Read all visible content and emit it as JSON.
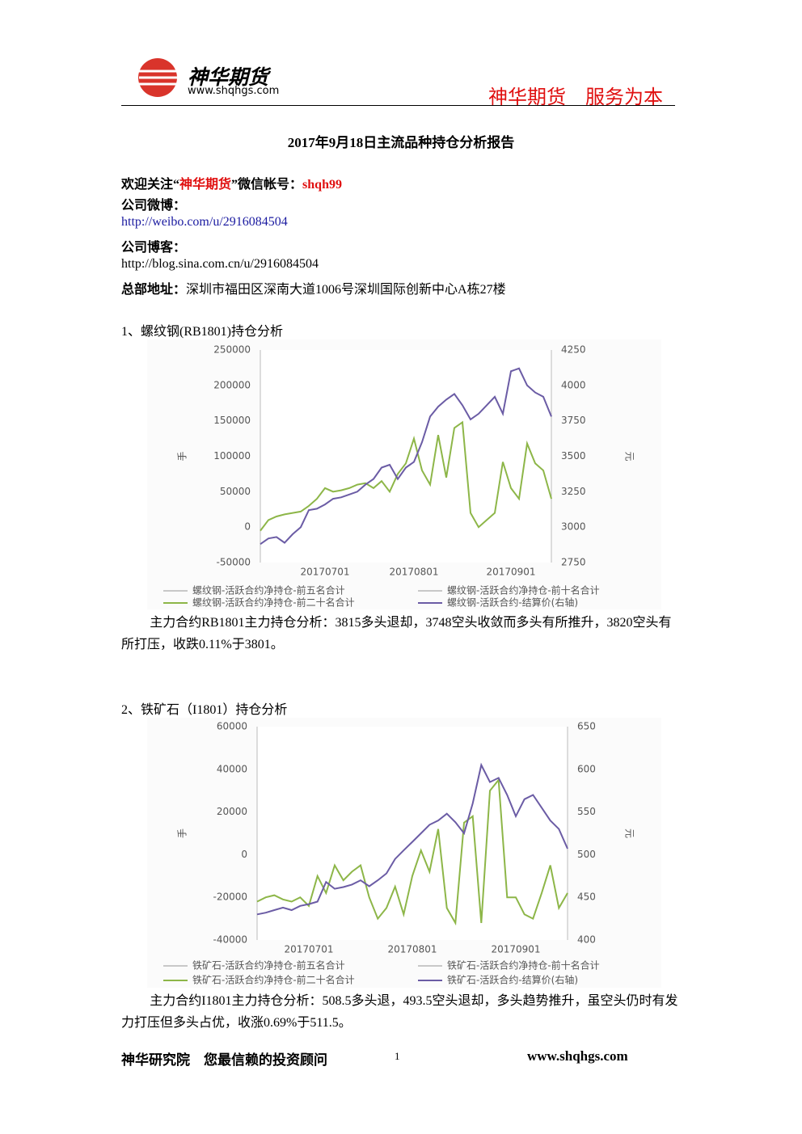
{
  "header": {
    "brand": "神华期货",
    "url": "www.shqhgs.com",
    "slogan": "神华期货　服务为本"
  },
  "title": "2017年9月18日主流品种持仓分析报告",
  "contact": {
    "wechat_prefix": "欢迎关注“",
    "wechat_name": "神华期货",
    "wechat_mid": "”微信帐号：",
    "wechat_id": "shqh99",
    "weibo_label": "公司微博：",
    "weibo_url": "http://weibo.com/u/2916084504",
    "blog_label": "公司博客：",
    "blog_url": "http://blog.sina.com.cn/u/2916084504",
    "address_label": "总部地址：",
    "address": "深圳市福田区深南大道1006号深圳国际创新中心A栋27楼"
  },
  "sections": [
    {
      "heading": "1、螺纹钢(RB1801)持仓分析",
      "analysis": "主力合约RB1801主力持仓分析：3815多头退却，3748空头收敛而多头有所推升，3820空头有所打压，收跌0.11%于3801。"
    },
    {
      "heading": "2、铁矿石（I1801）持仓分析",
      "analysis": "主力合约I1801主力持仓分析：508.5多头退，493.5空头退却，多头趋势推升，虽空头仍时有发力打压但多头占优，收涨0.69%于511.5。"
    }
  ],
  "chart_data": [
    {
      "type": "line",
      "y_label": "手",
      "y2_label": "元",
      "categories": [
        null,
        null,
        null,
        null,
        null,
        null,
        null,
        null,
        "20170701",
        null,
        null,
        null,
        null,
        null,
        null,
        null,
        null,
        null,
        null,
        "20170801",
        null,
        null,
        null,
        null,
        null,
        null,
        null,
        null,
        null,
        null,
        null,
        "20170901",
        null,
        null,
        null,
        null,
        null
      ],
      "ylim": [
        -50000,
        250000
      ],
      "yticks": [
        -50000,
        0,
        50000,
        100000,
        150000,
        200000,
        250000
      ],
      "y2lim": [
        2750,
        4250
      ],
      "y2ticks": [
        2750,
        3000,
        3250,
        3500,
        3750,
        4000,
        4250
      ],
      "grid": false,
      "series": [
        {
          "name": "螺纹钢-活跃合约净持仓-前五名合计",
          "color": "#c8c8c8",
          "values": [
            null,
            null,
            null,
            null,
            null,
            null,
            null,
            null,
            null,
            null,
            null,
            null,
            null,
            null,
            null,
            null,
            null,
            null,
            null,
            null,
            null,
            null,
            null,
            null,
            null,
            null,
            null,
            null,
            null,
            null,
            null,
            null,
            null,
            null,
            null,
            null,
            null
          ]
        },
        {
          "name": "螺纹钢-活跃合约净持仓-前十名合计",
          "color": "#c8c8c8",
          "values": [
            null,
            null,
            null,
            null,
            null,
            null,
            null,
            null,
            null,
            null,
            null,
            null,
            null,
            null,
            null,
            null,
            null,
            null,
            null,
            null,
            null,
            null,
            null,
            null,
            null,
            null,
            null,
            null,
            null,
            null,
            null,
            null,
            null,
            null,
            null,
            null,
            null
          ]
        },
        {
          "name": "螺纹钢-活跃合约净持仓-前二十名合计",
          "color": "#8db648",
          "values": [
            -5000,
            10000,
            15000,
            18000,
            20000,
            22000,
            30000,
            40000,
            55000,
            50000,
            52000,
            55000,
            60000,
            62000,
            55000,
            65000,
            50000,
            75000,
            90000,
            125000,
            80000,
            60000,
            130000,
            70000,
            140000,
            148000,
            20000,
            0,
            10000,
            20000,
            92000,
            55000,
            40000,
            118000,
            90000,
            80000,
            40000
          ]
        },
        {
          "name": "螺纹钢-活跃合约-结算价(右轴)",
          "color": "#6b5ca5",
          "axis": "y2",
          "values": [
            2880,
            2920,
            2930,
            2890,
            2950,
            3000,
            3120,
            3130,
            3160,
            3200,
            3210,
            3230,
            3250,
            3300,
            3340,
            3420,
            3440,
            3340,
            3420,
            3460,
            3600,
            3780,
            3850,
            3900,
            3940,
            3860,
            3760,
            3800,
            3860,
            3920,
            3800,
            4100,
            4120,
            4000,
            3950,
            3920,
            3780
          ]
        }
      ]
    },
    {
      "type": "line",
      "y_label": "手",
      "y2_label": "元",
      "categories": [
        null,
        null,
        null,
        null,
        null,
        null,
        "20170701",
        null,
        null,
        null,
        null,
        null,
        null,
        null,
        null,
        null,
        null,
        null,
        "20170801",
        null,
        null,
        null,
        null,
        null,
        null,
        null,
        null,
        null,
        null,
        null,
        "20170901",
        null,
        null,
        null,
        null,
        null,
        null
      ],
      "ylim": [
        -40000,
        60000
      ],
      "yticks": [
        -40000,
        -20000,
        0,
        20000,
        40000,
        60000
      ],
      "y2lim": [
        400,
        650
      ],
      "y2ticks": [
        400,
        450,
        500,
        550,
        600,
        650
      ],
      "grid": false,
      "series": [
        {
          "name": "铁矿石-活跃合约净持仓-前五名合计",
          "color": "#c8c8c8",
          "values": [
            null,
            null,
            null,
            null,
            null,
            null,
            null,
            null,
            null,
            null,
            null,
            null,
            null,
            null,
            null,
            null,
            null,
            null,
            null,
            null,
            null,
            null,
            null,
            null,
            null,
            null,
            null,
            null,
            null,
            null,
            null,
            null,
            null,
            null,
            null,
            null,
            null
          ]
        },
        {
          "name": "铁矿石-活跃合约净持仓-前十名合计",
          "color": "#c8c8c8",
          "values": [
            null,
            null,
            null,
            null,
            null,
            null,
            null,
            null,
            null,
            null,
            null,
            null,
            null,
            null,
            null,
            null,
            null,
            null,
            null,
            null,
            null,
            null,
            null,
            null,
            null,
            null,
            null,
            null,
            null,
            null,
            null,
            null,
            null,
            null,
            null,
            null,
            null
          ]
        },
        {
          "name": "铁矿石-活跃合约净持仓-前二十名合计",
          "color": "#8db648",
          "values": [
            -22000,
            -20000,
            -19000,
            -21000,
            -22000,
            -20000,
            -24000,
            -10000,
            -18000,
            -5000,
            -12000,
            -8000,
            -5000,
            -20000,
            -30000,
            -25000,
            -15000,
            -28000,
            -10000,
            2000,
            -8000,
            12000,
            -25000,
            -32000,
            15000,
            18000,
            -32000,
            30000,
            35000,
            -20000,
            -20000,
            -28000,
            -30000,
            -18000,
            -5000,
            -25000,
            -18000
          ]
        },
        {
          "name": "铁矿石-活跃合约-结算价(右轴)",
          "color": "#6b5ca5",
          "axis": "y2",
          "values": [
            430,
            432,
            435,
            438,
            435,
            440,
            442,
            445,
            468,
            460,
            462,
            465,
            470,
            463,
            470,
            478,
            495,
            505,
            515,
            525,
            535,
            540,
            548,
            538,
            525,
            560,
            605,
            585,
            590,
            570,
            545,
            565,
            570,
            555,
            540,
            530,
            507
          ]
        }
      ]
    }
  ],
  "footer": {
    "left": "神华研究院　您最信赖的投资顾问",
    "page": "1",
    "url": "www.shqhgs.com"
  }
}
